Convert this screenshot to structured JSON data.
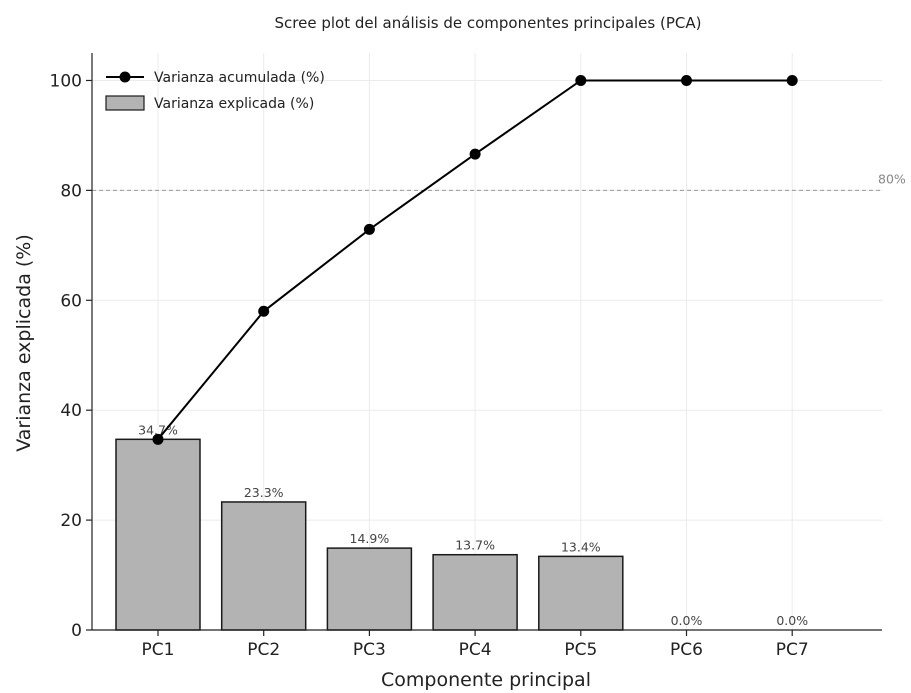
{
  "chart_data": {
    "type": "bar",
    "title": "Scree plot del análisis de componentes principales (PCA)",
    "xlabel": "Componente principal",
    "ylabel": "Varianza explicada (%)",
    "categories": [
      "PC1",
      "PC2",
      "PC3",
      "PC4",
      "PC5",
      "PC6",
      "PC7"
    ],
    "ylim": [
      0,
      105
    ],
    "yticks": [
      0,
      20,
      40,
      60,
      80,
      100
    ],
    "grid": true,
    "legend_position": "top-left",
    "series": [
      {
        "name": "Varianza explicada (%)",
        "type": "bar",
        "values": [
          34.7,
          23.3,
          14.9,
          13.7,
          13.4,
          0.0,
          0.0
        ],
        "labels": [
          "34.7%",
          "23.3%",
          "14.9%",
          "13.7%",
          "13.4%",
          "0.0%",
          "0.0%"
        ],
        "color": "#b3b3b3"
      },
      {
        "name": "Varianza acumulada (%)",
        "type": "line",
        "values": [
          34.7,
          58.0,
          72.9,
          86.6,
          100.0,
          100.0,
          100.0
        ],
        "color": "#000000"
      }
    ],
    "threshold": {
      "value": 80,
      "label": "80%",
      "color": "#999999"
    }
  }
}
